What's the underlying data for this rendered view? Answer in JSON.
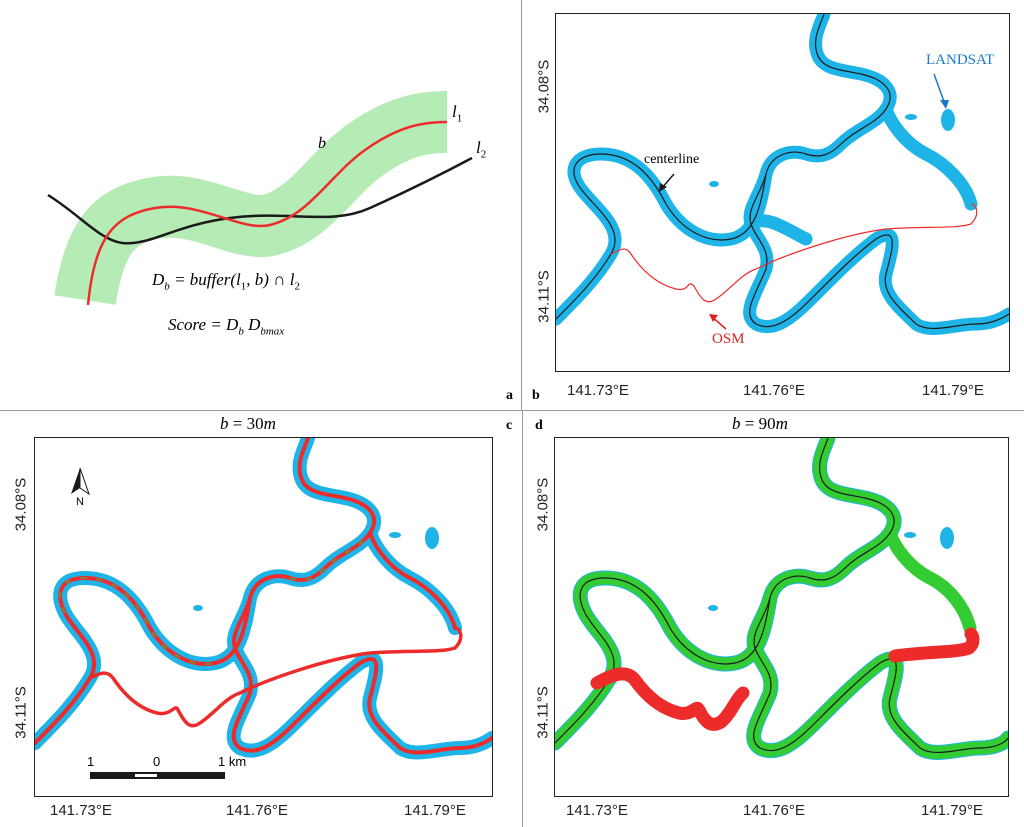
{
  "panel_a": {
    "line1_label": "l",
    "line1_sub": "1",
    "line2_label": "l",
    "line2_sub": "2",
    "buffer_label": "b",
    "equation_db": "D_b = buffer(l_1, b) ∩ l_2",
    "equation_db_parts": {
      "lhs": "D",
      "lhs_sub": "b",
      "mid": " = buffer(",
      "l": "l",
      "l_sub": "1",
      "rest": ", b) ∩ ",
      "l2": "l",
      "l2_sub": "2"
    },
    "equation_score_parts": {
      "lhs": "Score = D",
      "sub1": "b",
      "mid": "  D",
      "sub2": "bmax"
    },
    "letter": "a"
  },
  "panel_b": {
    "letter": "b",
    "annotation_landsat": "LANDSAT",
    "annotation_centerline": "centerline",
    "annotation_osm": "OSM",
    "y_ticks": [
      "34.08°S",
      "34.11°S"
    ],
    "x_ticks": [
      "141.73°E",
      "141.76°E",
      "141.79°E"
    ]
  },
  "panel_c": {
    "letter": "c",
    "title_parts": {
      "b": "b",
      "eq": " = 30",
      "m": "m"
    },
    "north_label": "N",
    "scale_labels": [
      "1",
      "0",
      "1 km"
    ],
    "y_ticks": [
      "34.08°S",
      "34.11°S"
    ],
    "x_ticks": [
      "141.73°E",
      "141.76°E",
      "141.79°E"
    ]
  },
  "panel_d": {
    "letter": "d",
    "title_parts": {
      "b": "b",
      "eq": " = 90",
      "m": "m"
    },
    "y_ticks": [
      "34.08°S",
      "34.11°S"
    ],
    "x_ticks": [
      "141.73°E",
      "141.76°E",
      "141.79°E"
    ]
  },
  "colors": {
    "landsat": "#1eb4e8",
    "centerline": "#1a1a1a",
    "osm": "#ee2b2b",
    "match": "#33cc33",
    "buffer_fill": "#b5ebb5",
    "landsat_label": "#1a7ac8",
    "osm_label": "#e02020"
  }
}
